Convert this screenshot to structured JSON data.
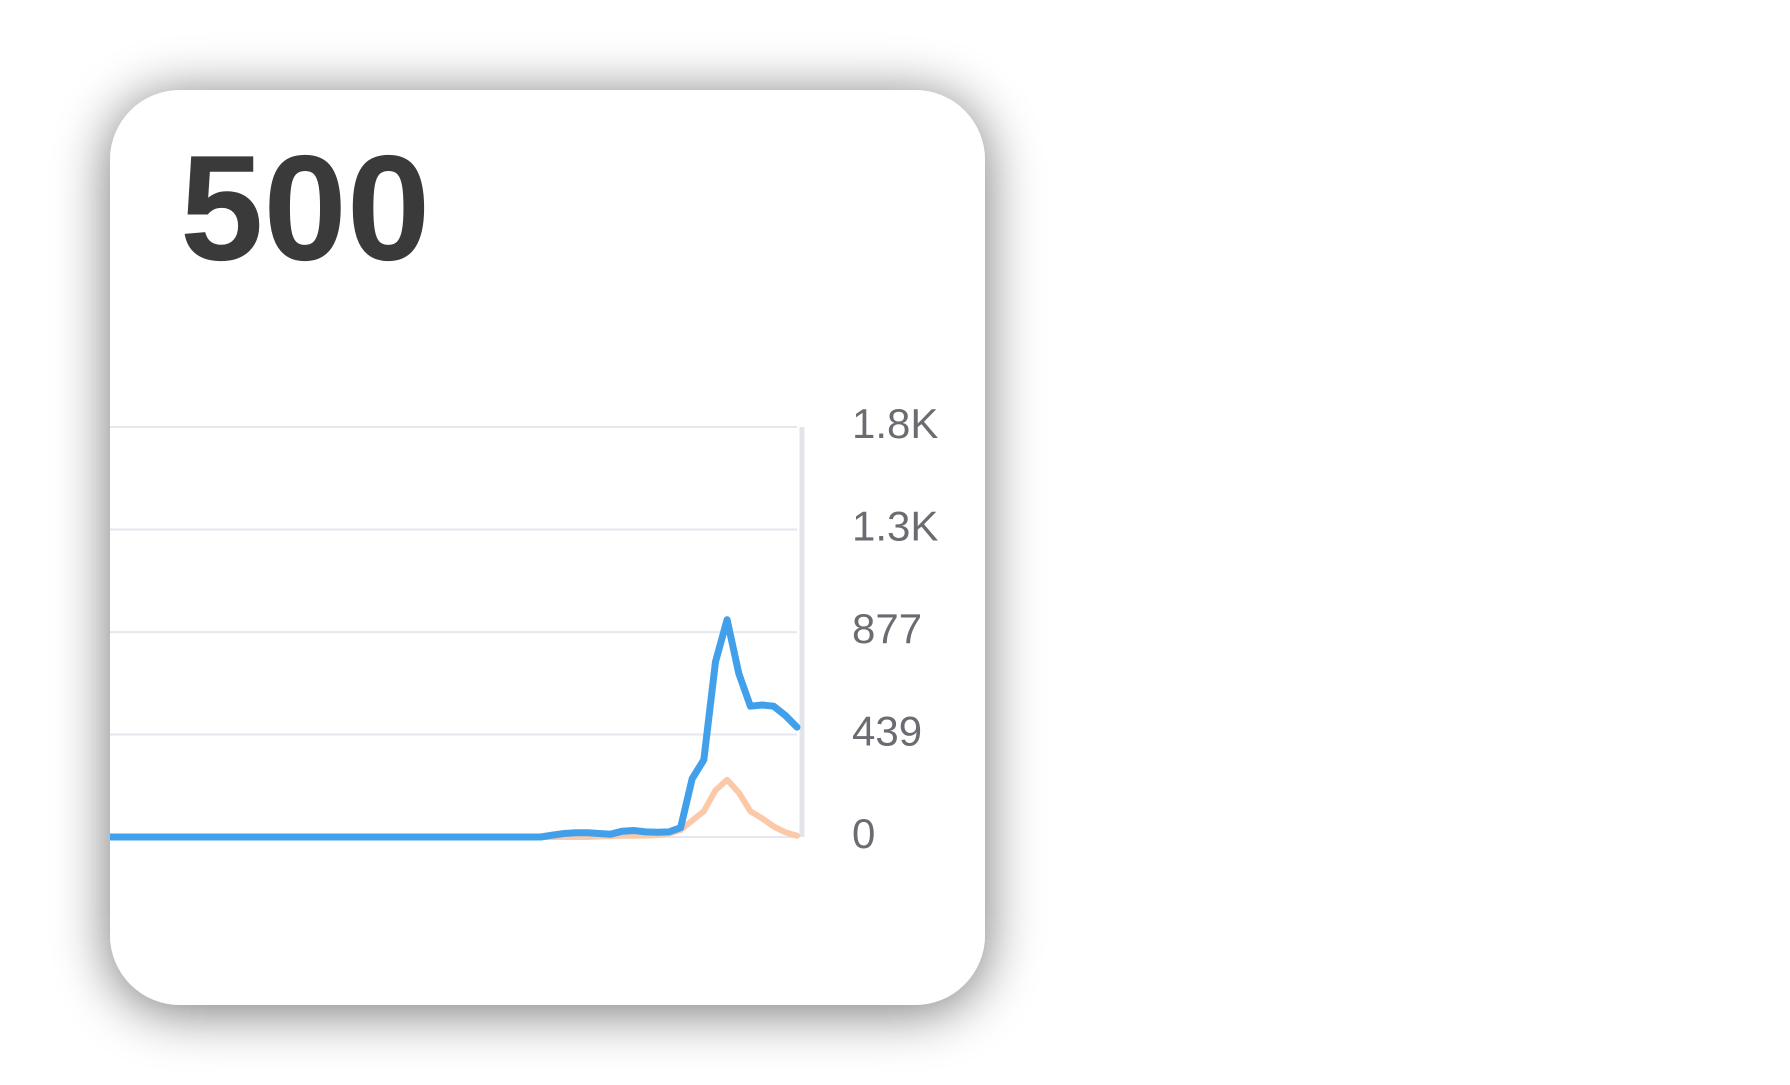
{
  "headline": "500",
  "chart_data": {
    "type": "line",
    "series": [
      {
        "name": null,
        "color": "#42a0ea",
        "values": [
          0,
          0,
          0,
          0,
          0,
          0,
          0,
          0,
          0,
          0,
          0,
          0,
          0,
          0,
          0,
          0,
          0,
          0,
          0,
          0,
          0,
          0,
          0,
          0,
          0,
          0,
          0,
          0,
          0,
          0,
          0,
          0,
          0,
          0,
          0,
          0,
          0,
          0,
          8,
          15,
          18,
          18,
          15,
          12,
          25,
          28,
          22,
          20,
          22,
          40,
          250,
          330,
          750,
          930,
          700,
          560,
          565,
          560,
          520,
          470
        ]
      },
      {
        "name": null,
        "color": "#fcc9a8",
        "values": [
          0,
          0,
          0,
          0,
          0,
          0,
          0,
          0,
          0,
          0,
          0,
          0,
          0,
          0,
          0,
          0,
          0,
          0,
          0,
          0,
          0,
          0,
          0,
          0,
          0,
          0,
          0,
          0,
          0,
          0,
          0,
          0,
          0,
          0,
          0,
          0,
          0,
          0,
          0,
          0,
          0,
          0,
          2,
          4,
          5,
          5,
          6,
          8,
          15,
          30,
          70,
          110,
          200,
          245,
          190,
          110,
          80,
          45,
          20,
          5
        ]
      }
    ],
    "ylim": [
      0,
      1755
    ],
    "yticks": [
      0,
      439,
      877,
      {
        "value": 1316,
        "label": "1.3K"
      },
      {
        "value": 1755,
        "label": "1.8K"
      }
    ],
    "grid": true
  }
}
